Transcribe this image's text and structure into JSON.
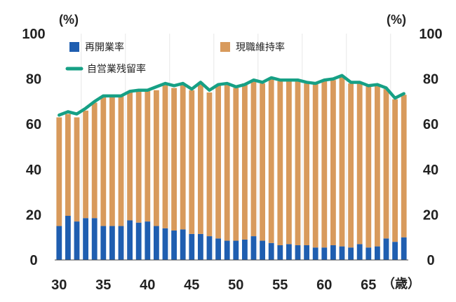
{
  "chart_data": {
    "type": "bar",
    "ylim": [
      0,
      100
    ],
    "yticks": [
      0,
      20,
      40,
      60,
      80,
      100
    ],
    "y_unit_left": "(%)",
    "y_unit_right": "(%)",
    "x_unit": "（歳）",
    "x_tick_labels": [
      {
        "x": 30,
        "label": "30"
      },
      {
        "x": 35,
        "label": "35"
      },
      {
        "x": 40,
        "label": "40"
      },
      {
        "x": 45,
        "label": "45"
      },
      {
        "x": 50,
        "label": "50"
      },
      {
        "x": 55,
        "label": "55"
      },
      {
        "x": 60,
        "label": "60"
      },
      {
        "x": 65,
        "label": "65"
      }
    ],
    "grid": "vertical",
    "legend": [
      "再開業率",
      "現職維持率",
      "自営業残留率"
    ],
    "x": [
      30,
      31,
      32,
      33,
      34,
      35,
      36,
      37,
      38,
      39,
      40,
      41,
      42,
      43,
      44,
      45,
      46,
      47,
      48,
      49,
      50,
      51,
      52,
      53,
      54,
      55,
      56,
      57,
      58,
      59,
      60,
      61,
      62,
      63,
      64,
      65,
      66,
      67,
      68,
      69
    ],
    "series": [
      {
        "name": "再開業率",
        "type": "stacked-bar",
        "color": "#1f5eb0",
        "values": [
          15,
          19.5,
          17,
          18.5,
          18.5,
          15,
          15,
          15,
          17.5,
          16.5,
          17,
          15,
          14,
          13,
          13.5,
          11.5,
          11.5,
          10.5,
          9.5,
          8.5,
          8.5,
          9,
          10.5,
          8.5,
          7.5,
          6.5,
          7,
          6.5,
          6.5,
          5.5,
          5.5,
          6.5,
          6,
          5.5,
          7,
          5.5,
          6,
          9.5,
          8,
          10
        ]
      },
      {
        "name": "現職維持率",
        "type": "stacked-bar",
        "color": "#d89a5c",
        "values": [
          48,
          45,
          46,
          47.5,
          51,
          57,
          57,
          58,
          57,
          58.5,
          58,
          60,
          63.5,
          63,
          64.5,
          63.5,
          67,
          63.5,
          67.5,
          69,
          67.5,
          69,
          69,
          69.5,
          72.5,
          72.5,
          72.5,
          73,
          71.5,
          72.5,
          73.5,
          73,
          75,
          72.5,
          71,
          71.5,
          71,
          66,
          63,
          63
        ]
      },
      {
        "name": "自営業残留率",
        "type": "line",
        "color": "#16a085",
        "values": [
          64,
          65.5,
          64.5,
          67,
          70,
          72.5,
          72.5,
          72.5,
          74.5,
          75,
          75,
          76.5,
          78,
          77,
          78,
          75.5,
          78.5,
          75,
          77.5,
          78,
          76.5,
          77.5,
          79.5,
          78.5,
          80.5,
          79.5,
          79.5,
          79.5,
          78.5,
          78,
          79.5,
          80,
          81.5,
          78.5,
          78.5,
          77,
          77.5,
          76,
          71.5,
          73.5
        ]
      }
    ]
  }
}
